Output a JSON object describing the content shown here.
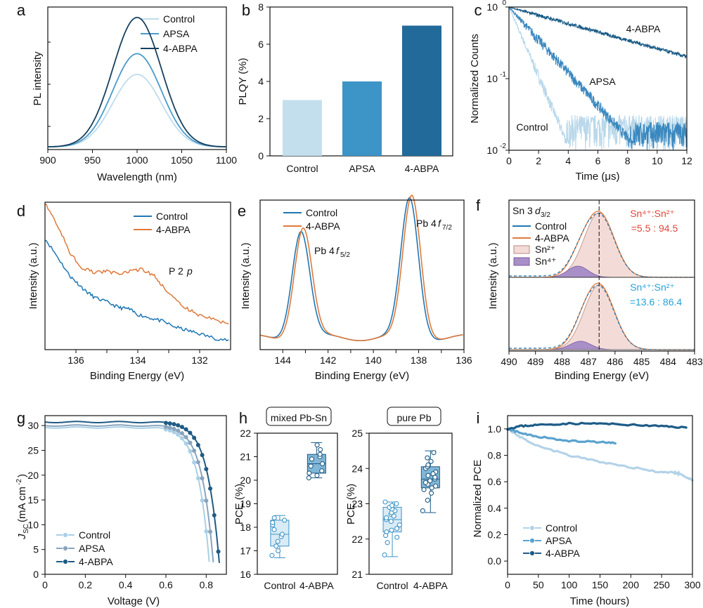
{
  "chart_data": [
    {
      "panel": "a",
      "type": "line",
      "xlabel": "Wavelength (nm)",
      "ylabel": "PL intensity",
      "xlim": [
        900,
        1100
      ],
      "xticks": [
        900,
        950,
        1000,
        1050,
        1100
      ],
      "series": [
        {
          "name": "Control",
          "color": "#bfdcec",
          "peak": 1000,
          "height": 0.56,
          "width": 42
        },
        {
          "name": "APSA",
          "color": "#4a9bc9",
          "peak": 1000,
          "height": 0.72,
          "width": 42
        },
        {
          "name": "4-ABPA",
          "color": "#17405f",
          "peak": 1000,
          "height": 1.0,
          "width": 42
        }
      ]
    },
    {
      "panel": "b",
      "type": "bar",
      "ylabel": "PLQY (%)",
      "ylim": [
        0,
        8
      ],
      "yticks": [
        0,
        2,
        4,
        6,
        8
      ],
      "categories": [
        "Control",
        "APSA",
        "4-ABPA"
      ],
      "values": [
        3.0,
        4.0,
        7.0
      ],
      "colors": [
        "#c3dfee",
        "#3d94c7",
        "#226a9a"
      ]
    },
    {
      "panel": "c",
      "type": "line",
      "yscale": "log",
      "xlabel": "Time (μs)",
      "ylabel": "Normalized Counts",
      "xlim": [
        0,
        12
      ],
      "xticks": [
        0,
        2,
        4,
        6,
        8,
        10,
        12
      ],
      "ylim": [
        0.01,
        1
      ],
      "yticks": [
        "10^-2",
        "10^-1",
        "10^0"
      ],
      "series": [
        {
          "name": "Control",
          "color": "#b9d8ea",
          "tau_us": 0.9
        },
        {
          "name": "APSA",
          "color": "#3a88bf",
          "tau_us": 1.9
        },
        {
          "name": "4-ABPA",
          "color": "#1a5b86",
          "tau_us": 7.5
        }
      ],
      "labels": [
        "4-ABPA",
        "APSA",
        "Control"
      ]
    },
    {
      "panel": "d",
      "type": "line",
      "xlabel": "Binding Energy (eV)",
      "ylabel": "Intensity (a.u.)",
      "xlim": [
        137,
        131
      ],
      "xticks": [
        136,
        134,
        132
      ],
      "annotation": "P 2p",
      "series": [
        {
          "name": "Control",
          "color": "#1f77b4",
          "x": [
            137,
            136.6,
            136.2,
            136.0,
            135.7,
            135.4,
            135.0,
            134.6,
            134.3,
            134.0,
            133.6,
            133.2,
            132.8,
            132.4,
            132.0,
            131.5,
            131.0
          ],
          "y": [
            0.98,
            0.82,
            0.65,
            0.6,
            0.52,
            0.46,
            0.42,
            0.37,
            0.36,
            0.31,
            0.28,
            0.25,
            0.2,
            0.17,
            0.14,
            0.1,
            0.08
          ]
        },
        {
          "name": "4-ABPA",
          "color": "#e07a3c",
          "x": [
            137,
            136.6,
            136.2,
            135.8,
            135.4,
            135.0,
            134.6,
            134.2,
            133.9,
            133.5,
            133.2,
            132.8,
            132.4,
            132.0,
            131.5,
            131.0
          ],
          "y": [
            1.3,
            1.1,
            0.86,
            0.72,
            0.68,
            0.69,
            0.67,
            0.69,
            0.71,
            0.66,
            0.56,
            0.44,
            0.36,
            0.3,
            0.26,
            0.22
          ]
        }
      ]
    },
    {
      "panel": "e",
      "type": "line",
      "xlabel": "Binding Energy (eV)",
      "ylabel": "Intensity (a.u.)",
      "xlim": [
        145,
        136
      ],
      "xticks": [
        144,
        142,
        140,
        138,
        136
      ],
      "annotations": [
        "Pb 4f5/2",
        "Pb 4f7/2"
      ],
      "series": [
        {
          "name": "Control",
          "color": "#1f77b4",
          "peaks": [
            [
              143.2,
              0.72
            ],
            [
              138.4,
              0.93
            ]
          ]
        },
        {
          "name": "4-ABPA",
          "color": "#e07a3c",
          "peaks": [
            [
              143.1,
              0.74
            ],
            [
              138.3,
              0.95
            ]
          ]
        }
      ]
    },
    {
      "panel": "f",
      "type": "line",
      "xlabel": "Binding Energy (eV)",
      "ylabel": "Intensity (a.u.)",
      "xlim": [
        490,
        483
      ],
      "xticks": [
        490,
        489,
        488,
        487,
        486,
        485,
        484,
        483
      ],
      "title": "Sn 3d3/2",
      "top_ratio": "Sn⁴⁺:Sn²⁺",
      "top_ratio_value": "=5.5 : 94.5",
      "bottom_ratio": "Sn⁴⁺:Sn²⁺",
      "bottom_ratio_value": "=13.6 : 86.4",
      "legend": [
        "Control",
        "4-ABPA",
        "Sn²⁺",
        "Sn⁴⁺"
      ],
      "sn2_peak": 486.6,
      "sn4_peak_top": 487.4,
      "sn4_peak_bottom": 487.3
    },
    {
      "panel": "g",
      "type": "line",
      "xlabel": "Voltage (V)",
      "ylabel": "Jsc (mA cm⁻²)",
      "xlim": [
        0,
        0.9
      ],
      "xticks": [
        0,
        0.2,
        0.4,
        0.6,
        0.8
      ],
      "ylim": [
        0,
        32
      ],
      "yticks": [
        0,
        5,
        10,
        15,
        20,
        25,
        30
      ],
      "series": [
        {
          "name": "Control",
          "color": "#a9d0e6",
          "jsc": 29.6,
          "voc": 0.82
        },
        {
          "name": "APSA",
          "color": "#8aa4bd",
          "jsc": 30.0,
          "voc": 0.84
        },
        {
          "name": "4-ABPA",
          "color": "#1f5b85",
          "jsc": 30.7,
          "voc": 0.87
        }
      ]
    },
    {
      "panel": "h1",
      "type": "box",
      "title": "mixed Pb-Sn",
      "ylabel": "PCE (%)",
      "ylim": [
        16,
        22
      ],
      "yticks": [
        16,
        17,
        18,
        19,
        20,
        21,
        22
      ],
      "categories": [
        "Control",
        "4-ABPA"
      ],
      "boxes": [
        {
          "min": 16.7,
          "q1": 17.2,
          "median": 17.7,
          "q3": 18.3,
          "max": 18.5,
          "points": [
            16.8,
            17.0,
            17.2,
            17.4,
            17.6,
            17.7,
            17.9,
            18.1,
            18.2,
            18.3,
            18.4
          ]
        },
        {
          "min": 20.1,
          "q1": 20.3,
          "median": 20.7,
          "q3": 21.1,
          "max": 21.6,
          "points": [
            20.1,
            20.2,
            20.3,
            20.4,
            20.6,
            20.7,
            20.9,
            21.0,
            21.1,
            21.3,
            21.5
          ]
        }
      ]
    },
    {
      "panel": "h2",
      "type": "box",
      "title": "pure Pb",
      "ylabel": "PCE (%)",
      "ylim": [
        21,
        25
      ],
      "yticks": [
        21,
        22,
        23,
        24,
        25
      ],
      "categories": [
        "Control",
        "4-ABPA"
      ],
      "boxes": [
        {
          "min": 21.5,
          "q1": 22.2,
          "median": 22.55,
          "q3": 22.9,
          "max": 23.05,
          "points": [
            21.55,
            21.9,
            22.05,
            22.2,
            22.3,
            22.4,
            22.5,
            22.55,
            22.6,
            22.7,
            22.75,
            22.8,
            22.85,
            22.9,
            22.95,
            23.0,
            23.05,
            22.1,
            22.25,
            22.65
          ]
        },
        {
          "min": 22.75,
          "q1": 23.45,
          "median": 23.7,
          "q3": 24.05,
          "max": 24.5,
          "points": [
            22.8,
            23.1,
            23.3,
            23.45,
            23.55,
            23.6,
            23.65,
            23.7,
            23.75,
            23.8,
            23.9,
            24.0,
            24.05,
            24.1,
            24.2,
            24.3,
            24.45,
            23.4,
            23.5,
            23.85
          ]
        }
      ]
    },
    {
      "panel": "i",
      "type": "line",
      "xlabel": "Time (hours)",
      "ylabel": "Normalized PCE",
      "xlim": [
        0,
        300
      ],
      "xticks": [
        0,
        50,
        100,
        150,
        200,
        250,
        300
      ],
      "ylim": [
        -0.1,
        1.1
      ],
      "yticks": [
        0.0,
        0.2,
        0.4,
        0.6,
        0.8,
        1.0
      ],
      "series": [
        {
          "name": "Control",
          "color": "#b4d3e8",
          "x": [
            0,
            20,
            50,
            100,
            150,
            200,
            250,
            270,
            280,
            300
          ],
          "y": [
            1.0,
            0.94,
            0.87,
            0.8,
            0.75,
            0.71,
            0.67,
            0.67,
            0.66,
            0.61
          ]
        },
        {
          "name": "APSA",
          "color": "#5aa3cf",
          "x": [
            0,
            20,
            50,
            100,
            150,
            175
          ],
          "y": [
            1.0,
            0.97,
            0.94,
            0.91,
            0.9,
            0.89
          ]
        },
        {
          "name": "4-ABPA",
          "color": "#1d5c87",
          "x": [
            0,
            20,
            50,
            100,
            150,
            200,
            250,
            290
          ],
          "y": [
            1.0,
            1.02,
            1.03,
            1.04,
            1.04,
            1.03,
            1.02,
            1.01
          ]
        }
      ]
    }
  ],
  "panel_letters": [
    "a",
    "b",
    "c",
    "d",
    "e",
    "f",
    "g",
    "h",
    "i"
  ]
}
